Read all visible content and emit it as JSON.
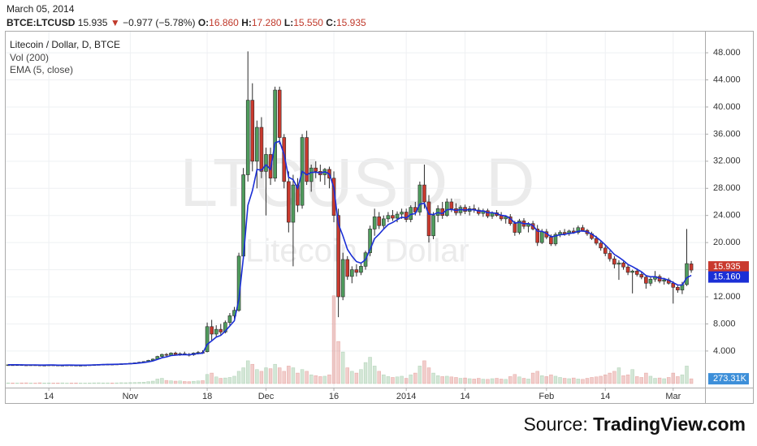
{
  "header": {
    "date": "March 05, 2014",
    "symbol": "BTCE:LTCUSD",
    "last": "15.935",
    "arrow": "▼",
    "change": "−0.977 (−5.78%)",
    "o_label": "O:",
    "open": "16.860",
    "h_label": "H:",
    "high": "17.280",
    "l_label": "L:",
    "low": "15.550",
    "c_label": "C:",
    "close": "15.935"
  },
  "source": {
    "prefix": "Source:",
    "name": "TradingView.com"
  },
  "chart_data": {
    "type": "candlestick",
    "title": "Litecoin / Dollar, D, BTCE",
    "watermark": "LTCUSD, D",
    "watermark_subtitle": "Litecoin / Dollar",
    "categories": [
      null,
      null,
      null,
      null,
      null,
      null,
      null,
      null,
      null,
      "14",
      null,
      null,
      null,
      null,
      null,
      null,
      null,
      null,
      null,
      null,
      null,
      null,
      null,
      null,
      null,
      null,
      null,
      "Nov",
      null,
      null,
      null,
      null,
      null,
      null,
      null,
      null,
      null,
      null,
      null,
      null,
      null,
      null,
      null,
      null,
      "18",
      null,
      null,
      null,
      null,
      null,
      null,
      null,
      null,
      null,
      null,
      null,
      null,
      "Dec",
      null,
      null,
      null,
      null,
      null,
      null,
      null,
      null,
      null,
      null,
      null,
      null,
      null,
      null,
      "16",
      null,
      null,
      null,
      null,
      null,
      null,
      null,
      null,
      null,
      null,
      null,
      null,
      null,
      null,
      null,
      "2014",
      null,
      null,
      null,
      null,
      null,
      null,
      null,
      null,
      null,
      null,
      null,
      null,
      "14",
      null,
      null,
      null,
      null,
      null,
      null,
      null,
      null,
      null,
      null,
      null,
      null,
      null,
      null,
      null,
      null,
      null,
      "Feb",
      null,
      null,
      null,
      null,
      null,
      null,
      null,
      null,
      null,
      null,
      null,
      null,
      "14",
      null,
      null,
      null,
      null,
      null,
      null,
      null,
      null,
      null,
      null,
      null,
      null,
      null,
      null,
      "Mar",
      null,
      null,
      null,
      null
    ],
    "ohlc": [
      [
        1.95,
        2.0,
        1.9,
        1.97
      ],
      [
        1.97,
        2.02,
        1.93,
        1.96
      ],
      [
        1.96,
        2.0,
        1.92,
        1.98
      ],
      [
        1.98,
        2.03,
        1.94,
        1.95
      ],
      [
        1.95,
        1.99,
        1.9,
        1.93
      ],
      [
        1.93,
        1.98,
        1.9,
        1.96
      ],
      [
        1.96,
        2.0,
        1.92,
        1.94
      ],
      [
        1.94,
        1.98,
        1.88,
        1.9
      ],
      [
        1.9,
        1.95,
        1.86,
        1.92
      ],
      [
        1.92,
        1.97,
        1.88,
        1.95
      ],
      [
        1.95,
        2.0,
        1.9,
        1.93
      ],
      [
        1.93,
        1.97,
        1.87,
        1.89
      ],
      [
        1.89,
        1.94,
        1.84,
        1.91
      ],
      [
        1.91,
        1.96,
        1.87,
        1.94
      ],
      [
        1.94,
        1.99,
        1.9,
        1.92
      ],
      [
        1.92,
        1.96,
        1.86,
        1.88
      ],
      [
        1.88,
        1.93,
        1.84,
        1.9
      ],
      [
        1.9,
        1.95,
        1.86,
        1.93
      ],
      [
        1.93,
        1.98,
        1.89,
        1.96
      ],
      [
        1.96,
        2.02,
        1.92,
        1.99
      ],
      [
        1.99,
        2.05,
        1.95,
        2.02
      ],
      [
        2.02,
        2.08,
        1.98,
        2.04
      ],
      [
        2.04,
        2.1,
        2.0,
        2.06
      ],
      [
        2.06,
        2.12,
        2.01,
        2.05
      ],
      [
        2.05,
        2.1,
        2.0,
        2.08
      ],
      [
        2.08,
        2.15,
        2.04,
        2.12
      ],
      [
        2.12,
        2.2,
        2.08,
        2.16
      ],
      [
        2.16,
        2.25,
        2.1,
        2.2
      ],
      [
        2.2,
        2.3,
        2.15,
        2.26
      ],
      [
        2.26,
        2.4,
        2.2,
        2.35
      ],
      [
        2.35,
        2.5,
        2.3,
        2.45
      ],
      [
        2.45,
        2.7,
        2.4,
        2.62
      ],
      [
        2.62,
        2.9,
        2.55,
        2.8
      ],
      [
        2.8,
        3.3,
        2.7,
        3.2
      ],
      [
        3.2,
        3.6,
        3.0,
        3.5
      ],
      [
        3.5,
        3.7,
        3.2,
        3.4
      ],
      [
        3.4,
        3.8,
        3.3,
        3.7
      ],
      [
        3.7,
        3.9,
        3.4,
        3.5
      ],
      [
        3.5,
        3.8,
        3.3,
        3.6
      ],
      [
        3.6,
        3.9,
        3.4,
        3.5
      ],
      [
        3.5,
        3.7,
        3.2,
        3.45
      ],
      [
        3.45,
        3.8,
        3.3,
        3.7
      ],
      [
        3.7,
        4.0,
        3.5,
        3.8
      ],
      [
        3.8,
        4.1,
        3.6,
        3.75
      ],
      [
        3.9,
        8.2,
        3.8,
        7.6
      ],
      [
        7.6,
        8.6,
        5.5,
        6.5
      ],
      [
        6.5,
        7.8,
        6.0,
        7.2
      ],
      [
        7.2,
        8.0,
        6.4,
        6.8
      ],
      [
        6.8,
        8.5,
        6.6,
        8.2
      ],
      [
        8.2,
        9.6,
        7.8,
        9.2
      ],
      [
        9.2,
        10.5,
        8.8,
        10.0
      ],
      [
        10.0,
        18.5,
        9.8,
        18.0
      ],
      [
        18.0,
        31.0,
        17.5,
        30.0
      ],
      [
        30.0,
        48.2,
        29.0,
        41.0
      ],
      [
        41.0,
        43.5,
        30.5,
        32.0
      ],
      [
        32.0,
        38.0,
        28.0,
        37.0
      ],
      [
        37.0,
        38.5,
        29.5,
        30.5
      ],
      [
        30.5,
        34.0,
        24.0,
        33.0
      ],
      [
        33.0,
        34.0,
        28.5,
        29.5
      ],
      [
        29.5,
        43.0,
        29.0,
        42.5
      ],
      [
        42.5,
        43.0,
        34.5,
        35.5
      ],
      [
        35.5,
        36.0,
        28.0,
        29.0
      ],
      [
        29.0,
        30.5,
        21.5,
        23.0
      ],
      [
        23.0,
        30.0,
        16.5,
        28.5
      ],
      [
        28.5,
        29.5,
        24.5,
        25.5
      ],
      [
        25.5,
        36.0,
        25.0,
        35.5
      ],
      [
        35.5,
        36.5,
        28.5,
        29.0
      ],
      [
        29.0,
        31.5,
        27.5,
        31.0
      ],
      [
        31.0,
        32.0,
        29.5,
        30.5
      ],
      [
        30.5,
        31.5,
        29.0,
        30.0
      ],
      [
        30.0,
        31.0,
        28.5,
        30.8
      ],
      [
        30.8,
        31.2,
        28.0,
        29.5
      ],
      [
        29.5,
        30.5,
        23.0,
        24.0
      ],
      [
        24.0,
        25.0,
        9.0,
        12.0
      ],
      [
        12.0,
        18.5,
        11.5,
        17.5
      ],
      [
        17.5,
        18.0,
        14.5,
        15.0
      ],
      [
        15.0,
        16.5,
        14.0,
        16.0
      ],
      [
        16.0,
        16.8,
        15.0,
        15.6
      ],
      [
        15.6,
        17.0,
        15.2,
        16.5
      ],
      [
        16.5,
        18.8,
        16.0,
        18.5
      ],
      [
        18.5,
        22.5,
        18.0,
        22.0
      ],
      [
        22.0,
        25.0,
        21.0,
        23.8
      ],
      [
        23.8,
        24.5,
        22.0,
        22.5
      ],
      [
        22.5,
        24.0,
        22.0,
        23.5
      ],
      [
        23.5,
        24.5,
        23.0,
        24.0
      ],
      [
        24.0,
        24.8,
        23.2,
        23.6
      ],
      [
        23.6,
        24.6,
        23.0,
        24.2
      ],
      [
        24.2,
        25.0,
        23.5,
        24.5
      ],
      [
        24.5,
        25.0,
        23.0,
        23.4
      ],
      [
        23.4,
        25.5,
        23.0,
        25.2
      ],
      [
        25.2,
        26.0,
        24.0,
        24.5
      ],
      [
        24.5,
        29.0,
        24.0,
        28.5
      ],
      [
        28.5,
        31.5,
        25.0,
        26.0
      ],
      [
        26.0,
        27.0,
        20.0,
        21.0
      ],
      [
        21.0,
        24.5,
        20.5,
        24.0
      ],
      [
        24.0,
        25.5,
        23.0,
        25.0
      ],
      [
        25.0,
        26.0,
        23.5,
        24.0
      ],
      [
        24.0,
        26.5,
        23.8,
        26.0
      ],
      [
        26.0,
        26.5,
        24.5,
        25.0
      ],
      [
        25.0,
        25.8,
        24.0,
        24.4
      ],
      [
        24.4,
        25.5,
        24.0,
        25.2
      ],
      [
        25.2,
        25.6,
        24.2,
        24.6
      ],
      [
        24.6,
        25.4,
        24.0,
        25.0
      ],
      [
        25.0,
        25.6,
        24.4,
        24.8
      ],
      [
        24.8,
        25.2,
        24.0,
        24.3
      ],
      [
        24.3,
        25.0,
        23.8,
        24.7
      ],
      [
        24.7,
        25.0,
        23.6,
        23.9
      ],
      [
        23.9,
        24.6,
        23.5,
        24.4
      ],
      [
        24.4,
        24.8,
        23.8,
        24.0
      ],
      [
        24.0,
        24.5,
        23.2,
        23.5
      ],
      [
        23.5,
        24.0,
        22.8,
        23.8
      ],
      [
        23.8,
        24.2,
        22.5,
        22.8
      ],
      [
        22.8,
        23.2,
        21.0,
        21.5
      ],
      [
        21.5,
        23.5,
        21.2,
        23.2
      ],
      [
        23.2,
        23.6,
        22.0,
        22.4
      ],
      [
        22.4,
        23.0,
        21.5,
        22.8
      ],
      [
        22.8,
        23.2,
        21.8,
        22.0
      ],
      [
        22.0,
        22.6,
        19.5,
        20.0
      ],
      [
        20.0,
        22.0,
        19.8,
        21.6
      ],
      [
        21.6,
        22.0,
        20.5,
        20.8
      ],
      [
        20.8,
        21.2,
        19.5,
        19.8
      ],
      [
        19.8,
        21.5,
        19.5,
        21.2
      ],
      [
        21.2,
        21.8,
        20.8,
        21.5
      ],
      [
        21.5,
        22.0,
        21.0,
        21.3
      ],
      [
        21.3,
        21.9,
        21.0,
        21.7
      ],
      [
        21.7,
        22.2,
        21.3,
        21.5
      ],
      [
        21.5,
        22.5,
        21.2,
        22.2
      ],
      [
        22.2,
        22.6,
        21.6,
        21.8
      ],
      [
        21.8,
        22.0,
        21.0,
        21.3
      ],
      [
        21.3,
        21.6,
        20.4,
        20.6
      ],
      [
        20.6,
        21.0,
        19.6,
        19.9
      ],
      [
        19.9,
        20.2,
        18.8,
        19.2
      ],
      [
        19.2,
        19.6,
        18.0,
        18.4
      ],
      [
        18.4,
        18.8,
        17.2,
        17.6
      ],
      [
        17.6,
        18.0,
        16.2,
        16.8
      ],
      [
        16.8,
        17.4,
        14.5,
        17.0
      ],
      [
        17.0,
        17.2,
        16.0,
        16.4
      ],
      [
        16.4,
        16.8,
        15.2,
        15.6
      ],
      [
        15.6,
        16.0,
        12.5,
        15.8
      ],
      [
        15.8,
        16.2,
        15.0,
        15.3
      ],
      [
        15.3,
        15.6,
        14.6,
        14.9
      ],
      [
        14.9,
        15.2,
        13.2,
        14.0
      ],
      [
        14.0,
        15.0,
        13.6,
        14.6
      ],
      [
        14.6,
        15.8,
        14.2,
        15.0
      ],
      [
        15.0,
        15.3,
        14.0,
        14.3
      ],
      [
        14.3,
        14.8,
        13.8,
        14.5
      ],
      [
        14.5,
        14.8,
        13.8,
        14.0
      ],
      [
        14.0,
        14.3,
        11.0,
        13.4
      ],
      [
        13.4,
        13.7,
        12.6,
        13.0
      ],
      [
        13.0,
        14.2,
        12.4,
        13.8
      ],
      [
        13.8,
        22.0,
        13.6,
        16.9
      ],
      [
        16.86,
        17.28,
        15.55,
        15.935
      ]
    ],
    "up_color": "#4f9c5d",
    "down_color": "#c9392e",
    "series": [
      {
        "name": "EMA (5, close)",
        "color": "#1b2fd6",
        "value_label": "15.160",
        "values": [
          1.97,
          1.97,
          1.97,
          1.96,
          1.95,
          1.95,
          1.95,
          1.93,
          1.93,
          1.94,
          1.94,
          1.92,
          1.92,
          1.93,
          1.93,
          1.91,
          1.91,
          1.92,
          1.93,
          1.95,
          1.97,
          2.0,
          2.02,
          2.03,
          2.05,
          2.07,
          2.1,
          2.13,
          2.17,
          2.23,
          2.3,
          2.41,
          2.54,
          2.76,
          3.01,
          3.14,
          3.33,
          3.39,
          3.46,
          3.47,
          3.46,
          3.54,
          3.63,
          3.67,
          4.98,
          5.49,
          6.06,
          6.31,
          6.94,
          7.69,
          8.46,
          11.64,
          17.76,
          25.51,
          27.67,
          30.78,
          30.69,
          31.46,
          30.81,
          34.71,
          34.97,
          32.98,
          29.65,
          29.27,
          28.01,
          30.51,
          30.01,
          30.34,
          30.39,
          30.26,
          30.44,
          30.13,
          28.09,
          22.73,
          20.98,
          18.99,
          17.99,
          17.19,
          16.96,
          17.47,
          18.98,
          20.59,
          21.23,
          21.99,
          22.66,
          22.97,
          23.38,
          23.75,
          23.63,
          24.15,
          24.27,
          25.68,
          25.79,
          24.19,
          24.13,
          24.42,
          24.28,
          24.85,
          24.9,
          24.73,
          24.89,
          24.79,
          24.86,
          24.84,
          24.66,
          24.67,
          24.41,
          24.41,
          24.27,
          24.01,
          23.94,
          23.56,
          22.87,
          22.98,
          22.79,
          22.79,
          22.53,
          21.69,
          21.66,
          21.37,
          20.85,
          20.97,
          21.15,
          21.2,
          21.37,
          21.41,
          21.67,
          21.71,
          21.57,
          21.25,
          20.8,
          20.27,
          19.65,
          18.97,
          18.25,
          17.83,
          17.35,
          16.77,
          16.45,
          16.07,
          15.68,
          15.12,
          14.95,
          14.97,
          14.75,
          14.67,
          14.45,
          14.1,
          13.73,
          13.75,
          14.8,
          15.16
        ]
      }
    ],
    "volume": {
      "name": "Vol (200)",
      "value_label": "273.31K",
      "values": [
        40,
        35,
        30,
        38,
        42,
        30,
        28,
        45,
        33,
        36,
        30,
        34,
        40,
        28,
        32,
        36,
        30,
        29,
        35,
        41,
        44,
        38,
        40,
        36,
        42,
        50,
        48,
        55,
        60,
        70,
        80,
        110,
        140,
        260,
        300,
        180,
        160,
        140,
        150,
        120,
        110,
        130,
        150,
        170,
        520,
        600,
        380,
        300,
        320,
        350,
        420,
        700,
        900,
        1300,
        1100,
        800,
        700,
        900,
        850,
        1100,
        900,
        700,
        1000,
        900,
        600,
        800,
        700,
        500,
        450,
        400,
        420,
        500,
        5000,
        2400,
        1800,
        900,
        700,
        600,
        800,
        1200,
        1500,
        1000,
        700,
        500,
        400,
        350,
        380,
        420,
        300,
        500,
        600,
        1000,
        1300,
        900,
        600,
        450,
        400,
        420,
        380,
        350,
        300,
        320,
        280,
        260,
        300,
        250,
        240,
        280,
        300,
        260,
        240,
        400,
        520,
        380,
        300,
        260,
        600,
        700,
        450,
        400,
        500,
        420,
        350,
        300,
        280,
        320,
        260,
        240,
        300,
        350,
        380,
        420,
        500,
        600,
        700,
        900,
        450,
        500,
        800,
        400,
        350,
        600,
        420,
        300,
        320,
        280,
        350,
        600,
        400,
        500,
        1000,
        273.31
      ]
    },
    "y2lim": [
      0,
      20000
    ],
    "last_label": "15.935",
    "ylim": [
      -0.8,
      51
    ],
    "yticks": [
      {
        "value": 4,
        "label": "4.000"
      },
      {
        "value": 8,
        "label": "8.000"
      },
      {
        "value": 12,
        "label": "12.000"
      },
      {
        "value": 16,
        "label": "16.000"
      },
      {
        "value": 20,
        "label": "20.000"
      },
      {
        "value": 24,
        "label": "24.000"
      },
      {
        "value": 28,
        "label": "28.000"
      },
      {
        "value": 32,
        "label": "32.000"
      },
      {
        "value": 36,
        "label": "36.000"
      },
      {
        "value": 40,
        "label": "40.000"
      },
      {
        "value": 44,
        "label": "44.000"
      },
      {
        "value": 48,
        "label": "48.000"
      }
    ],
    "grid": true
  }
}
